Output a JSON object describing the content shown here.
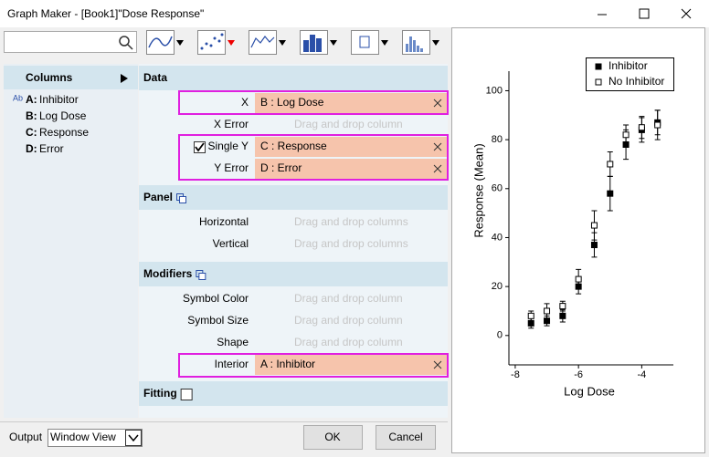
{
  "window": {
    "title": "Graph Maker - [Book1]\"Dose Response\""
  },
  "columns_panel": {
    "header": "Columns",
    "items": [
      {
        "badge": "Ab",
        "key": "A:",
        "name": "Inhibitor"
      },
      {
        "key": "B:",
        "name": "Log Dose"
      },
      {
        "key": "C:",
        "name": "Response"
      },
      {
        "key": "D:",
        "name": "Error"
      }
    ]
  },
  "sections": [
    {
      "title": "Data",
      "rows": [
        {
          "label": "X",
          "value": "B : Log Dose"
        },
        {
          "label": "X Error",
          "placeholder": "Drag and drop column"
        },
        {
          "label": "Single Y",
          "checked": true,
          "value": "C : Response"
        },
        {
          "label": "Y Error",
          "value": "D : Error"
        }
      ]
    },
    {
      "title": "Panel",
      "rows": [
        {
          "label": "Horizontal",
          "placeholder": "Drag and drop columns"
        },
        {
          "label": "Vertical",
          "placeholder": "Drag and drop columns"
        }
      ]
    },
    {
      "title": "Modifiers",
      "rows": [
        {
          "label": "Symbol Color",
          "placeholder": "Drag and drop column"
        },
        {
          "label": "Symbol Size",
          "placeholder": "Drag and drop column"
        },
        {
          "label": "Shape",
          "placeholder": "Drag and drop column"
        },
        {
          "label": "Interior",
          "value": "A : Inhibitor"
        }
      ]
    },
    {
      "title": "Fitting",
      "checked": false,
      "rows": []
    }
  ],
  "footer": {
    "output_label": "Output",
    "output_value": "Window View",
    "ok": "OK",
    "cancel": "Cancel"
  },
  "chart_data": {
    "type": "scatter",
    "xlabel": "Log Dose",
    "ylabel": "Response (Mean)",
    "x": [
      -7.5,
      -7,
      -6.5,
      -6,
      -5.5,
      -5,
      -4.5,
      -4,
      -3.5
    ],
    "series": [
      {
        "name": "Inhibitor",
        "color": "#000000",
        "filled": true,
        "values": [
          5,
          6,
          8,
          20,
          37,
          58,
          78,
          84,
          87
        ],
        "errors": [
          2,
          2,
          2.5,
          3,
          5,
          7,
          6,
          5,
          5
        ]
      },
      {
        "name": "No Inhibitor",
        "color": "#000000",
        "filled": false,
        "values": [
          8,
          10,
          12,
          23,
          45,
          70,
          82,
          85,
          86
        ],
        "errors": [
          2,
          3,
          2,
          4,
          6,
          5,
          4,
          4.5,
          6
        ]
      }
    ],
    "xlim": [
      -8.2,
      -3.0
    ],
    "xticks": [
      -8,
      -6,
      -4
    ],
    "ylim": [
      -12,
      108
    ],
    "yticks": [
      0,
      20,
      40,
      60,
      80,
      100
    ],
    "legend": "upper-right"
  }
}
